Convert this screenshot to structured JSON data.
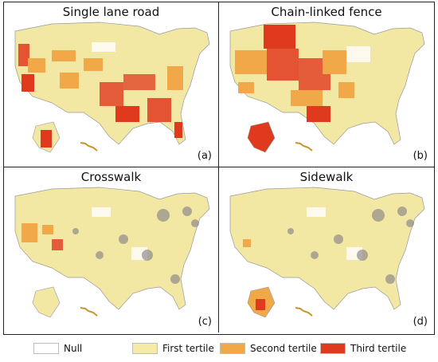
{
  "panels": [
    {
      "title": "Single lane road",
      "label": "(a)"
    },
    {
      "title": "Chain-linked fence",
      "label": "(b)"
    },
    {
      "title": "Crosswalk",
      "label": "(c)"
    },
    {
      "title": "Sidewalk",
      "label": "(d)"
    }
  ],
  "legend": [
    {
      "label": "Null",
      "color": "#ffffff"
    },
    {
      "label": "First tertile",
      "color": "#f6eba6"
    },
    {
      "label": "Second tertile",
      "color": "#f0a848"
    },
    {
      "label": "Third tertile",
      "color": "#e03a1e"
    }
  ],
  "colors": {
    "land": "#f3e7a4",
    "state_border": "#8c8c8c",
    "dense_urban": "#7f7b86"
  }
}
